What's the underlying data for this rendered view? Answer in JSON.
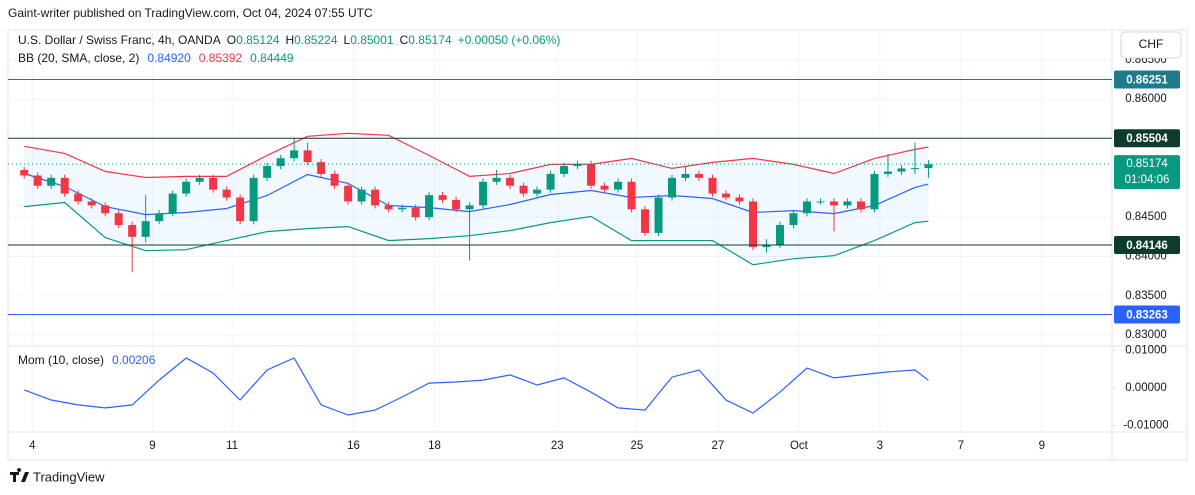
{
  "header": {
    "published": "Gaint-writer published on TradingView.com, Oct 04, 2024 07:55 UTC"
  },
  "symbol_button": "CHF",
  "brand": "TradingView",
  "chart_data": [
    {
      "type": "candlestick",
      "title": "U.S. Dollar / Swiss Franc, 4h, OANDA",
      "legend": {
        "o": "O",
        "h": "H",
        "l": "L",
        "c": "C",
        "change": "+0.00050 (+0.06%)"
      },
      "indicator_label": "BB (20, SMA, close, 2)",
      "up_color": "#089981",
      "down_color": "#f23645",
      "candles": {
        "open": [
          0.851,
          0.8503,
          0.849,
          0.85,
          0.848,
          0.847,
          0.8465,
          0.8455,
          0.844,
          0.8425,
          0.8445,
          0.8455,
          0.848,
          0.8495,
          0.85,
          0.8485,
          0.8475,
          0.8445,
          0.85,
          0.8515,
          0.8525,
          0.8535,
          0.852,
          0.8505,
          0.849,
          0.847,
          0.8485,
          0.8465,
          0.846,
          0.8462,
          0.845,
          0.8478,
          0.8472,
          0.846,
          0.8465,
          0.8495,
          0.85,
          0.849,
          0.848,
          0.8485,
          0.8505,
          0.8515,
          0.8518,
          0.849,
          0.8485,
          0.8495,
          0.846,
          0.843,
          0.8475,
          0.85,
          0.8505,
          0.85,
          0.848,
          0.8475,
          0.847,
          0.8412,
          0.8415,
          0.844,
          0.8455,
          0.847,
          0.847,
          0.8465,
          0.847,
          0.846,
          0.8505,
          0.8508,
          0.8512,
          0.85124
        ],
        "high": [
          0.8514,
          0.8507,
          0.8504,
          0.8504,
          0.8484,
          0.8474,
          0.8469,
          0.8459,
          0.8444,
          0.8478,
          0.8459,
          0.8484,
          0.8499,
          0.8504,
          0.8504,
          0.8489,
          0.8479,
          0.8504,
          0.8519,
          0.8529,
          0.855,
          0.8545,
          0.8524,
          0.8509,
          0.8494,
          0.8489,
          0.8489,
          0.8469,
          0.8466,
          0.8466,
          0.8482,
          0.8482,
          0.8476,
          0.8469,
          0.8499,
          0.851,
          0.8504,
          0.8494,
          0.8489,
          0.8509,
          0.8519,
          0.8522,
          0.8522,
          0.8494,
          0.8499,
          0.8499,
          0.8464,
          0.8479,
          0.8504,
          0.8515,
          0.8509,
          0.8504,
          0.8484,
          0.8479,
          0.8474,
          0.8422,
          0.8444,
          0.8459,
          0.8474,
          0.8474,
          0.8474,
          0.8474,
          0.8474,
          0.8509,
          0.853,
          0.8516,
          0.8545,
          0.85224
        ],
        "low": [
          0.8499,
          0.8486,
          0.8486,
          0.8476,
          0.8466,
          0.8461,
          0.8451,
          0.8436,
          0.838,
          0.8418,
          0.8441,
          0.8451,
          0.8476,
          0.8491,
          0.8481,
          0.8471,
          0.8441,
          0.8441,
          0.8496,
          0.8511,
          0.8521,
          0.8516,
          0.8501,
          0.8486,
          0.8466,
          0.8466,
          0.8461,
          0.8456,
          0.8456,
          0.8446,
          0.8446,
          0.8468,
          0.8456,
          0.8395,
          0.8461,
          0.8491,
          0.8486,
          0.8476,
          0.8476,
          0.8481,
          0.8501,
          0.8511,
          0.8486,
          0.8481,
          0.8481,
          0.8456,
          0.8426,
          0.8426,
          0.8471,
          0.8496,
          0.8496,
          0.8476,
          0.8471,
          0.8466,
          0.8408,
          0.8405,
          0.8411,
          0.8436,
          0.8451,
          0.8466,
          0.8432,
          0.8461,
          0.8456,
          0.8456,
          0.8501,
          0.8504,
          0.8505,
          0.85001
        ],
        "close": [
          0.8503,
          0.849,
          0.85,
          0.848,
          0.847,
          0.8465,
          0.8455,
          0.844,
          0.8425,
          0.8445,
          0.8455,
          0.848,
          0.8495,
          0.85,
          0.8485,
          0.8475,
          0.8445,
          0.85,
          0.8515,
          0.8525,
          0.8535,
          0.852,
          0.8505,
          0.849,
          0.847,
          0.8485,
          0.8465,
          0.846,
          0.8462,
          0.845,
          0.8478,
          0.8472,
          0.846,
          0.8465,
          0.8495,
          0.85,
          0.849,
          0.848,
          0.8485,
          0.8505,
          0.8515,
          0.8518,
          0.849,
          0.8485,
          0.8495,
          0.846,
          0.843,
          0.8475,
          0.85,
          0.8505,
          0.85,
          0.848,
          0.8475,
          0.847,
          0.8412,
          0.8415,
          0.844,
          0.8455,
          0.847,
          0.847,
          0.8465,
          0.847,
          0.846,
          0.8505,
          0.8508,
          0.8512,
          0.85124,
          0.85174
        ]
      },
      "series": [
        {
          "color": "#f23645",
          "x": [
            0,
            3,
            6,
            9,
            12,
            15,
            18,
            21,
            24,
            27,
            30,
            33,
            36,
            39,
            42,
            45,
            48,
            51,
            54,
            57,
            60,
            63,
            66,
            67
          ],
          "values": [
            0.85401,
            0.85311,
            0.85082,
            0.85005,
            0.85018,
            0.85018,
            0.85286,
            0.85528,
            0.85566,
            0.85541,
            0.85286,
            0.85018,
            0.85056,
            0.85171,
            0.85171,
            0.85247,
            0.8512,
            0.85196,
            0.85247,
            0.85171,
            0.85056,
            0.85247,
            0.85362,
            0.85392
          ]
        },
        {
          "color": "#2962ff",
          "x": [
            0,
            3,
            6,
            9,
            12,
            15,
            18,
            21,
            24,
            27,
            30,
            33,
            36,
            39,
            42,
            45,
            48,
            51,
            54,
            57,
            60,
            63,
            66,
            67
          ],
          "values": [
            0.85056,
            0.8489,
            0.84635,
            0.84533,
            0.84559,
            0.8461,
            0.84776,
            0.85043,
            0.84929,
            0.84648,
            0.84622,
            0.84571,
            0.84661,
            0.84788,
            0.84839,
            0.8475,
            0.84776,
            0.84737,
            0.84559,
            0.84584,
            0.84546,
            0.84648,
            0.84878,
            0.8492
          ],
          "value_labels": [
            null,
            null,
            null,
            null,
            null,
            null,
            null,
            null,
            null,
            null,
            null,
            null,
            null,
            null,
            null,
            null,
            null,
            null,
            null,
            null,
            null,
            null,
            null,
            "0.84920"
          ]
        },
        {
          "color": "#089981",
          "x": [
            0,
            3,
            6,
            9,
            12,
            15,
            18,
            21,
            24,
            27,
            30,
            33,
            36,
            39,
            42,
            45,
            48,
            51,
            54,
            57,
            60,
            63,
            66,
            67
          ],
          "values": [
            0.84635,
            0.84686,
            0.8424,
            0.84074,
            0.84087,
            0.84202,
            0.84316,
            0.84355,
            0.8438,
            0.84202,
            0.84227,
            0.84265,
            0.84329,
            0.84431,
            0.84508,
            0.84202,
            0.84202,
            0.84202,
            0.83895,
            0.83972,
            0.8401,
            0.84202,
            0.84431,
            0.84449
          ]
        }
      ],
      "price_lines": [
        {
          "value": 0.86251,
          "color": "#1f7a8c"
        },
        {
          "value": 0.85504,
          "color": "#0d3b2e"
        },
        {
          "value": 0.84146,
          "color": "#0d3b2e"
        },
        {
          "value": 0.83263,
          "color": "#2962ff"
        }
      ],
      "countdown": "01:04:06",
      "xlim": [
        -1.2,
        80.6
      ],
      "xticks": [
        {
          "value": 0.6,
          "label": "4"
        },
        {
          "value": 9.5,
          "label": "9"
        },
        {
          "value": 15.4,
          "label": "11"
        },
        {
          "value": 24.4,
          "label": "16"
        },
        {
          "value": 30.4,
          "label": "18"
        },
        {
          "value": 39.5,
          "label": "23"
        },
        {
          "value": 45.4,
          "label": "25"
        },
        {
          "value": 51.4,
          "label": "27"
        },
        {
          "value": 57.4,
          "label": "Oct"
        },
        {
          "value": 63.4,
          "label": "3"
        },
        {
          "value": 69.4,
          "label": "7"
        },
        {
          "value": 75.4,
          "label": "9"
        }
      ],
      "ylim": [
        0.82862,
        0.8688
      ],
      "yticks": [
        {
          "value": 0.865,
          "label": "0.86500"
        },
        {
          "value": 0.86,
          "label": "0.86000"
        },
        {
          "value": 0.845,
          "label": "0.84500"
        },
        {
          "value": 0.84,
          "label": "0.84000"
        },
        {
          "value": 0.835,
          "label": "0.83500"
        },
        {
          "value": 0.83,
          "label": "0.83000"
        }
      ],
      "grid": true
    },
    {
      "type": "line",
      "title": "Mom (10, close)",
      "series": [
        {
          "color": "#2962ff",
          "x": [
            0,
            2,
            4,
            6,
            8,
            10,
            12,
            14,
            16,
            18,
            20,
            22,
            24,
            26,
            28,
            30,
            32,
            34,
            36,
            38,
            40,
            42,
            44,
            46,
            48,
            50,
            52,
            54,
            56,
            58,
            60,
            62,
            64,
            66,
            67
          ],
          "values": [
            -0.0005,
            -0.0032,
            -0.0045,
            -0.0053,
            -0.0045,
            0.0021,
            0.008,
            0.004,
            -0.0032,
            0.0048,
            0.008,
            -0.0045,
            -0.0072,
            -0.0059,
            -0.0024,
            0.0013,
            0.0016,
            0.0021,
            0.0035,
            0.0008,
            0.0027,
            -0.0011,
            -0.0053,
            -0.0059,
            0.0029,
            0.0048,
            -0.0032,
            -0.0067,
            -0.0011,
            0.0053,
            0.0027,
            0.0035,
            0.0043,
            0.0048,
            0.00206
          ]
        }
      ],
      "ylim": [
        -0.01173,
        0.01093
      ],
      "yticks": [
        {
          "value": 0.01,
          "label": "0.01000"
        },
        {
          "value": 0,
          "label": "0.00000"
        },
        {
          "value": -0.01,
          "label": "-0.01000"
        }
      ]
    }
  ]
}
